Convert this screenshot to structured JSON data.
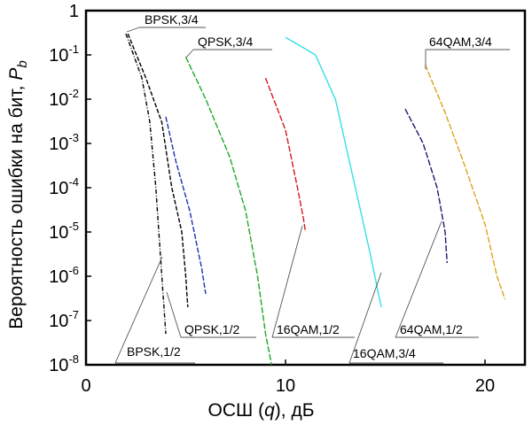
{
  "chart_data": {
    "type": "line",
    "title": "",
    "xlabel": "ОСШ (q), дБ",
    "xlabel_parts": {
      "pre": "ОСШ (",
      "var": "q",
      "post": "), дБ"
    },
    "ylabel": "Вероятность ошибки на бит, Pb",
    "ylabel_parts": {
      "pre": "Вероятность ошибки на бит, ",
      "var": "P",
      "sub": "b"
    },
    "xlim": [
      0,
      22
    ],
    "ylim": [
      1e-08,
      1
    ],
    "yscale": "log",
    "grid": false,
    "legend": "none (labels with leader lines)",
    "x_ticks": [
      {
        "value": 0,
        "label": "0"
      },
      {
        "value": 10,
        "label": "10"
      },
      {
        "value": 20,
        "label": "20"
      }
    ],
    "y_ticks": [
      {
        "exp": 0,
        "base": "1",
        "sup": ""
      },
      {
        "exp": -1,
        "base": "10",
        "sup": "-1"
      },
      {
        "exp": -2,
        "base": "10",
        "sup": "-2"
      },
      {
        "exp": -3,
        "base": "10",
        "sup": "-3"
      },
      {
        "exp": -4,
        "base": "10",
        "sup": "-4"
      },
      {
        "exp": -5,
        "base": "10",
        "sup": "-5"
      },
      {
        "exp": -6,
        "base": "10",
        "sup": "-6"
      },
      {
        "exp": -7,
        "base": "10",
        "sup": "-7"
      },
      {
        "exp": -8,
        "base": "10",
        "sup": "-8"
      }
    ],
    "series": [
      {
        "name": "BPSK,1/2",
        "color": "#000000",
        "dash": "5,2,1,2",
        "label_anchor": "bottom-left",
        "points": [
          [
            2.0,
            0.3
          ],
          [
            2.8,
            0.03
          ],
          [
            3.2,
            0.003
          ],
          [
            3.5,
            0.0001
          ],
          [
            3.8,
            1e-06
          ],
          [
            4.0,
            5e-08
          ]
        ]
      },
      {
        "name": "BPSK,3/4",
        "color": "#000000",
        "dash": "5,2",
        "label_anchor": "top",
        "points": [
          [
            2.1,
            0.3
          ],
          [
            3.0,
            0.03
          ],
          [
            3.8,
            0.003
          ],
          [
            4.3,
            0.0001
          ],
          [
            4.8,
            1e-05
          ],
          [
            5.0,
            1e-06
          ],
          [
            5.1,
            2e-07
          ]
        ]
      },
      {
        "name": "QPSK,1/2",
        "color": "#1f2fb0",
        "dash": "6,2",
        "label_anchor": "bottom",
        "points": [
          [
            4.0,
            0.004
          ],
          [
            4.5,
            0.0004
          ],
          [
            5.2,
            3e-05
          ],
          [
            5.8,
            1.5e-06
          ],
          [
            6.0,
            4e-07
          ]
        ]
      },
      {
        "name": "QPSK,3/4",
        "color": "#1aa82a",
        "dash": "7,2",
        "label_anchor": "top",
        "points": [
          [
            5.0,
            0.09
          ],
          [
            6.0,
            0.01
          ],
          [
            7.2,
            0.0005
          ],
          [
            8.0,
            3e-05
          ],
          [
            8.6,
            1e-06
          ],
          [
            9.0,
            5e-08
          ],
          [
            9.3,
            1e-08
          ]
        ]
      },
      {
        "name": "16QAM,1/2",
        "color": "#d41a1a",
        "dash": "7,2",
        "label_anchor": "bottom",
        "points": [
          [
            9.0,
            0.03
          ],
          [
            10.0,
            0.002
          ],
          [
            10.6,
            0.0001
          ],
          [
            10.9,
            2e-05
          ],
          [
            11.0,
            1e-05
          ]
        ]
      },
      {
        "name": "16QAM,3/4",
        "color": "#33e0e6",
        "dash": "",
        "label_anchor": "bottom-right",
        "points": [
          [
            10.0,
            0.25
          ],
          [
            11.5,
            0.1
          ],
          [
            12.5,
            0.01
          ],
          [
            13.5,
            0.0001
          ],
          [
            14.2,
            4e-06
          ],
          [
            14.8,
            2e-07
          ]
        ]
      },
      {
        "name": "64QAM,1/2",
        "color": "#1a1a6e",
        "dash": "7,2",
        "label_anchor": "bottom",
        "points": [
          [
            16.0,
            0.006
          ],
          [
            16.9,
            0.001
          ],
          [
            17.6,
            0.0001
          ],
          [
            18.0,
            1e-05
          ],
          [
            18.1,
            2e-06
          ]
        ]
      },
      {
        "name": "64QAM,3/4",
        "color": "#d9a617",
        "dash": "7,2",
        "label_anchor": "top",
        "points": [
          [
            17.0,
            0.06
          ],
          [
            18.0,
            0.005
          ],
          [
            19.0,
            0.0003
          ],
          [
            20.0,
            1.5e-05
          ],
          [
            20.6,
            1e-06
          ],
          [
            21.0,
            3e-07
          ]
        ]
      }
    ]
  }
}
